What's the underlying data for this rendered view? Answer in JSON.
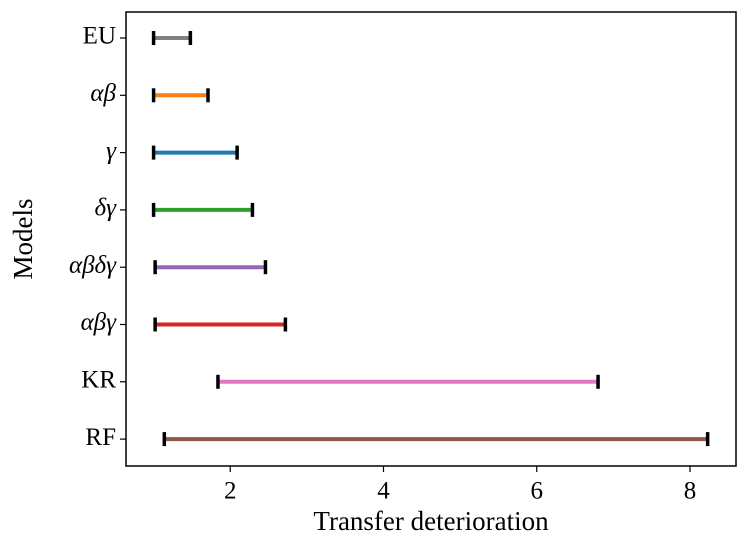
{
  "chart_data": {
    "type": "range",
    "x_label": "Transfer deterioration",
    "y_label": "Models",
    "categories": [
      "EU",
      "αβ",
      "γ",
      "δγ",
      "αβδγ",
      "αβγ",
      "KR",
      "RF"
    ],
    "starts": [
      1.0,
      1.0,
      1.0,
      1.0,
      1.02,
      1.02,
      1.84,
      1.14
    ],
    "ends": [
      1.48,
      1.71,
      2.09,
      2.29,
      2.46,
      2.72,
      6.8,
      8.23
    ],
    "colors": [
      "#7f7f7f",
      "#ff7f0e",
      "#1f77b4",
      "#2ca02c",
      "#9467bd",
      "#d62728",
      "#e377c2",
      "#8c564b"
    ],
    "xlim": [
      0.64,
      8.6
    ],
    "xticks": [
      2,
      4,
      6,
      8
    ]
  }
}
